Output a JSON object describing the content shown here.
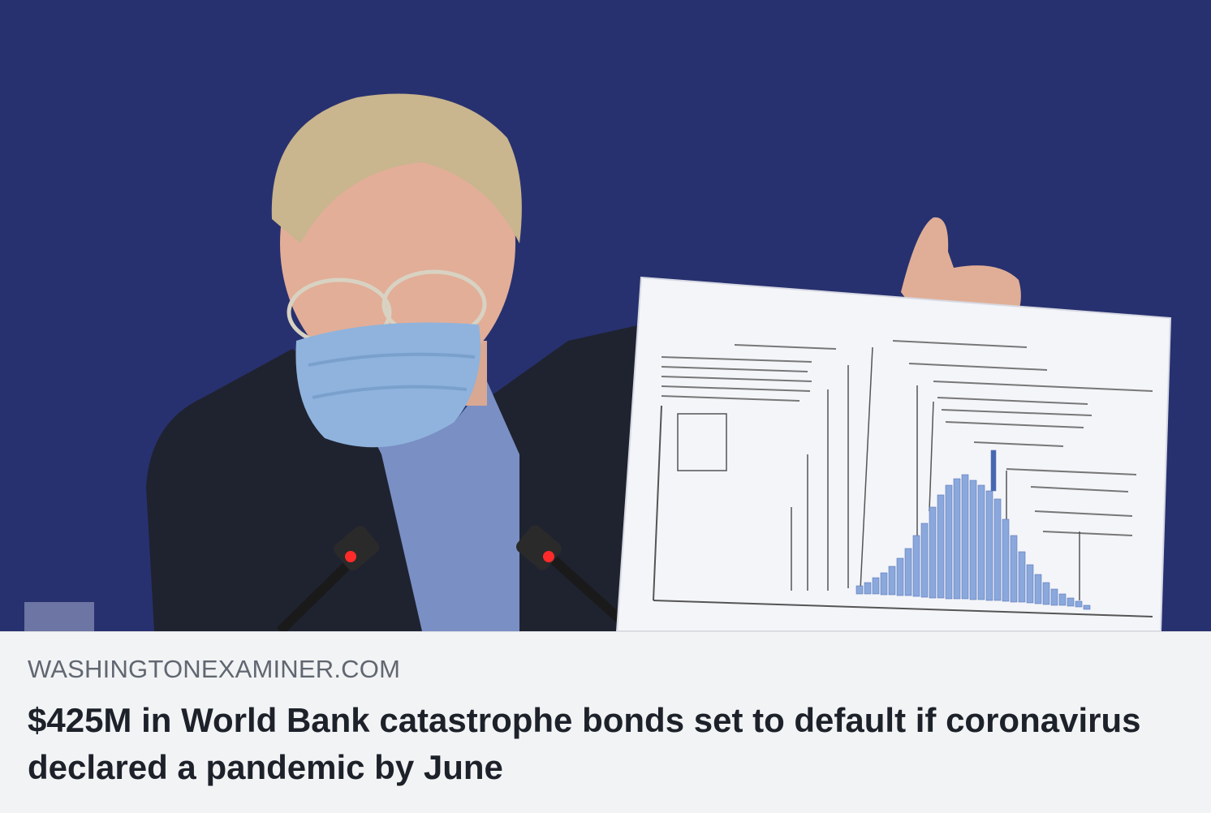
{
  "link_preview": {
    "image": {
      "description_icon": "press-conference-photo"
    },
    "domain": "WASHINGTONEXAMINER.COM",
    "headline": "$425M in World Bank catastrophe bonds set to default if coronavirus declared a pandemic by June"
  },
  "colors": {
    "background_blue": "#26306f",
    "meta_bg": "#f2f3f5",
    "domain_text": "#606770",
    "headline_text": "#1d2129"
  }
}
